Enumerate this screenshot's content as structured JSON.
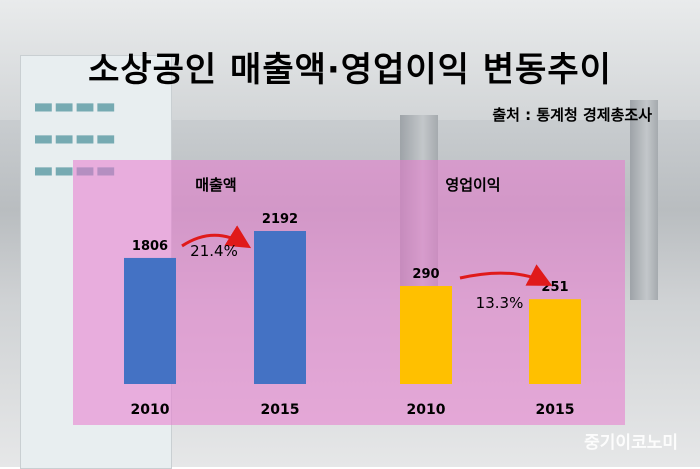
{
  "title": "소상공인 매출액·영업이익 변동추이",
  "source": "출처 : 통계청 경제총조사",
  "watermark": "중기이코노미",
  "colors": {
    "sales": "#4472C4",
    "profit": "#FFC000",
    "overlay": "#E878CD",
    "arrow": "#E01A1A"
  },
  "chart_data": [
    {
      "type": "bar",
      "title": "매출액",
      "categories": [
        "2010",
        "2015"
      ],
      "values": [
        1806,
        2192
      ],
      "change_label": "21.4%",
      "color": "#4472C4"
    },
    {
      "type": "bar",
      "title": "영업이익",
      "categories": [
        "2010",
        "2015"
      ],
      "values": [
        290,
        251
      ],
      "change_label": "13.3%",
      "color": "#FFC000"
    }
  ]
}
